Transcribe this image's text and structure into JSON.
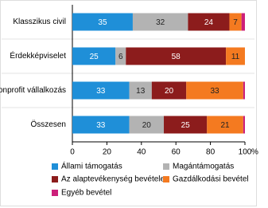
{
  "chart_data": {
    "type": "stacked-bar-horizontal",
    "categories": [
      "Klasszikus civil",
      "Érdekképviselet",
      "Nonprofit vállalkozás",
      "Összesen"
    ],
    "series": [
      {
        "name": "Állami támogatás",
        "color": "#1f8fd8",
        "values": [
          35,
          25,
          33,
          33
        ]
      },
      {
        "name": "Magántámogatás",
        "color": "#b3b3b3",
        "values": [
          32,
          6,
          13,
          20
        ]
      },
      {
        "name": "Az alaptevékenység bevétele",
        "color": "#8c1c1c",
        "values": [
          24,
          58,
          20,
          25
        ]
      },
      {
        "name": "Gazdálkodási bevétel",
        "color": "#f47a20",
        "values": [
          7,
          11,
          33,
          21
        ]
      },
      {
        "name": "Egyéb bevétel",
        "color": "#cc1f7a",
        "values": [
          2,
          0,
          1,
          1
        ]
      }
    ],
    "xlim": [
      0,
      100
    ],
    "xticks": [
      0,
      20,
      40,
      60,
      80,
      100
    ],
    "x_unit": "%"
  }
}
